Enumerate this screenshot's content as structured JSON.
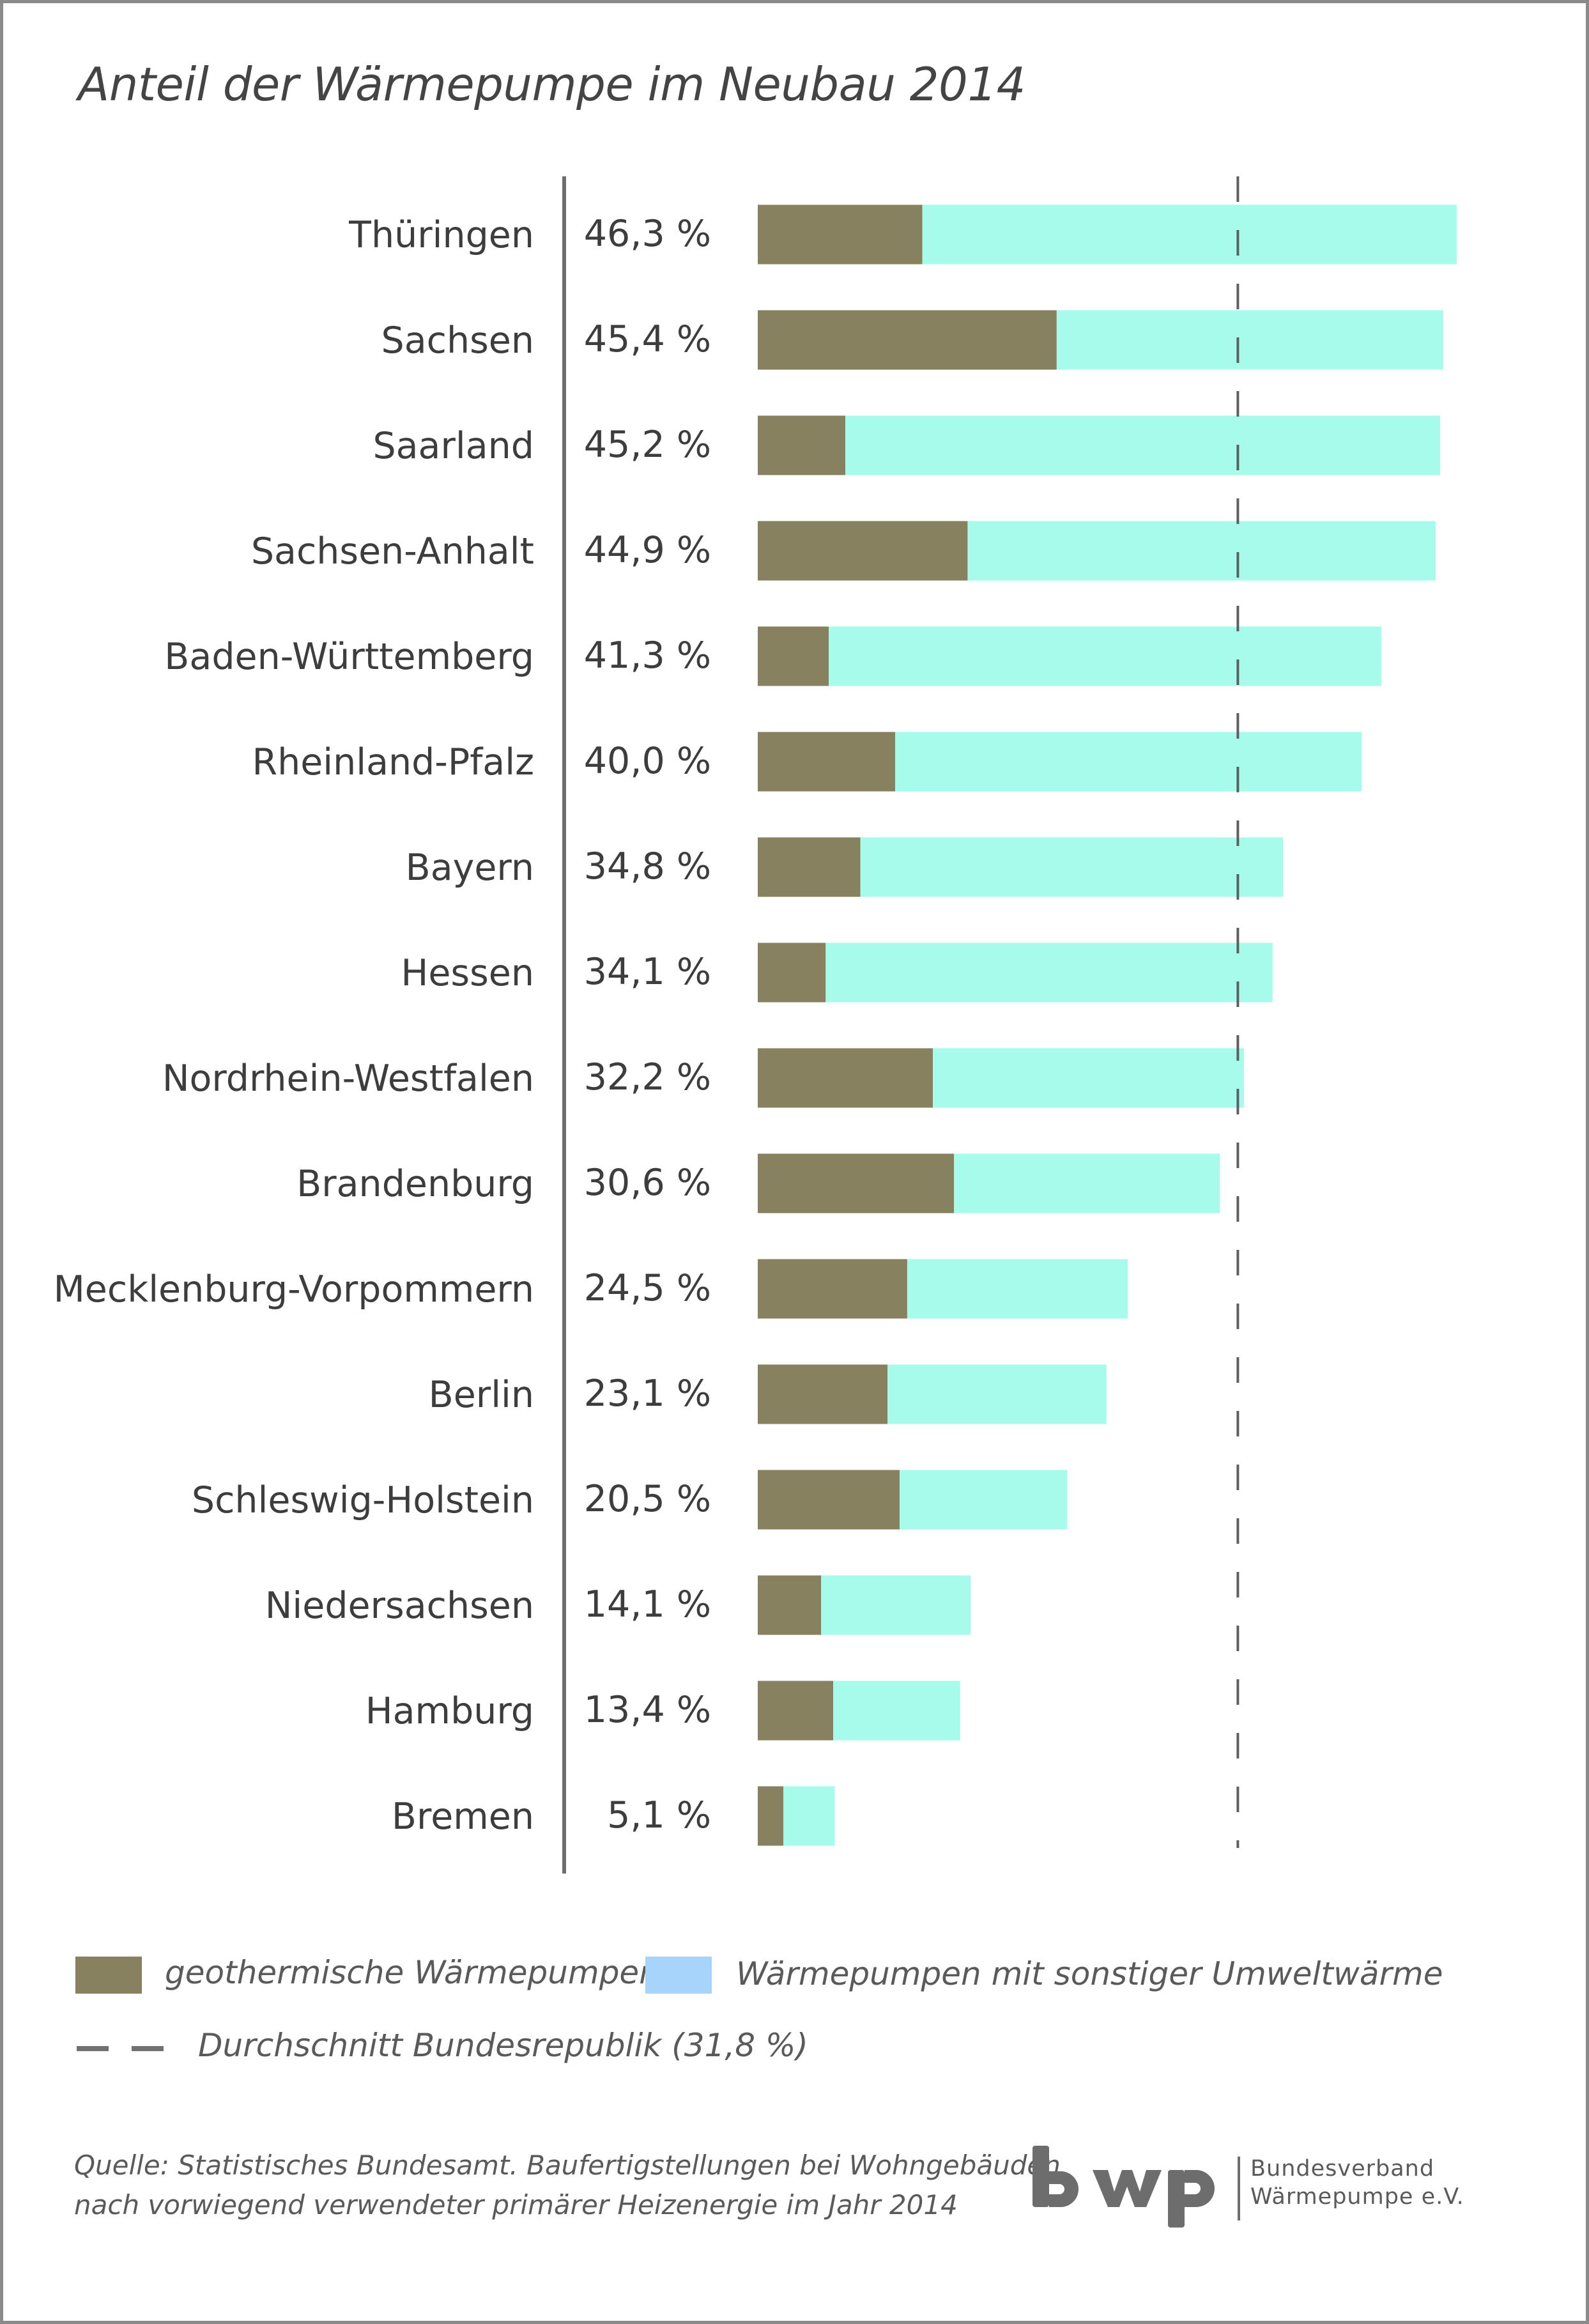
{
  "title": "Anteil der Wärmepumpe im Neubau 2014",
  "chart_data": {
    "type": "bar",
    "orientation": "horizontal",
    "stacked": true,
    "categories": [
      "Thüringen",
      "Sachsen",
      "Saarland",
      "Sachsen-Anhalt",
      "Baden-Württemberg",
      "Rheinland-Pfalz",
      "Bayern",
      "Hessen",
      "Nordrhein-Westfalen",
      "Brandenburg",
      "Mecklenburg-Vorpommern",
      "Berlin",
      "Schleswig-Holstein",
      "Niedersachsen",
      "Hamburg",
      "Bremen"
    ],
    "value_labels": [
      "46,3 %",
      "45,4 %",
      "45,2 %",
      "44,9 %",
      "41,3 %",
      "40,0 %",
      "34,8 %",
      "34,1 %",
      "32,2 %",
      "30,6 %",
      "24,5 %",
      "23,1 %",
      "20,5 %",
      "14,1 %",
      "13,4 %",
      "5,1 %"
    ],
    "totals": [
      46.3,
      45.4,
      45.2,
      44.9,
      41.3,
      40.0,
      34.8,
      34.1,
      32.2,
      30.6,
      24.5,
      23.1,
      20.5,
      14.1,
      13.4,
      5.1
    ],
    "series": [
      {
        "name": "geothermische Wärmepumpen",
        "color": "#878160",
        "values": [
          10.9,
          19.8,
          5.8,
          13.9,
          4.7,
          9.1,
          6.8,
          4.5,
          11.6,
          13.0,
          9.9,
          8.6,
          9.4,
          4.2,
          5.0,
          1.7
        ]
      },
      {
        "name": "Wärmepumpen mit sonstiger Umweltwärme",
        "color": "#a6fbea",
        "values": [
          35.4,
          25.6,
          39.4,
          31.0,
          36.6,
          30.9,
          28.0,
          29.6,
          20.6,
          17.6,
          14.6,
          14.5,
          11.1,
          9.9,
          8.4,
          3.4
        ]
      }
    ],
    "reference_line": {
      "label": "Durchschnitt Bundesrepublik (31,8 %)",
      "value": 31.8,
      "style": "dashed"
    },
    "legend_swatch_color_2": "#a6d4fb",
    "xlim": [
      0,
      46.3
    ],
    "grid": false,
    "legend_placement": "bottom"
  },
  "legend": {
    "item1": "geothermische Wärmepumpen",
    "item2": "Wärmepumpen mit sonstiger Umweltwärme",
    "item3": "Durchschnitt Bundesrepublik (31,8 %)"
  },
  "source": {
    "line1": "Quelle: Statistisches Bundesamt. Baufertigstellungen bei Wohngebäuden",
    "line2": "nach vorwiegend verwendeter primärer Heizenergie im Jahr 2014"
  },
  "logo": {
    "text": "bwp",
    "org_line1": "Bundesverband",
    "org_line2": "Wärmepumpe e.V."
  },
  "colors": {
    "geo": "#878160",
    "other": "#a6fbea",
    "text": "#3d3d3d",
    "axis": "#6d6d6d"
  }
}
